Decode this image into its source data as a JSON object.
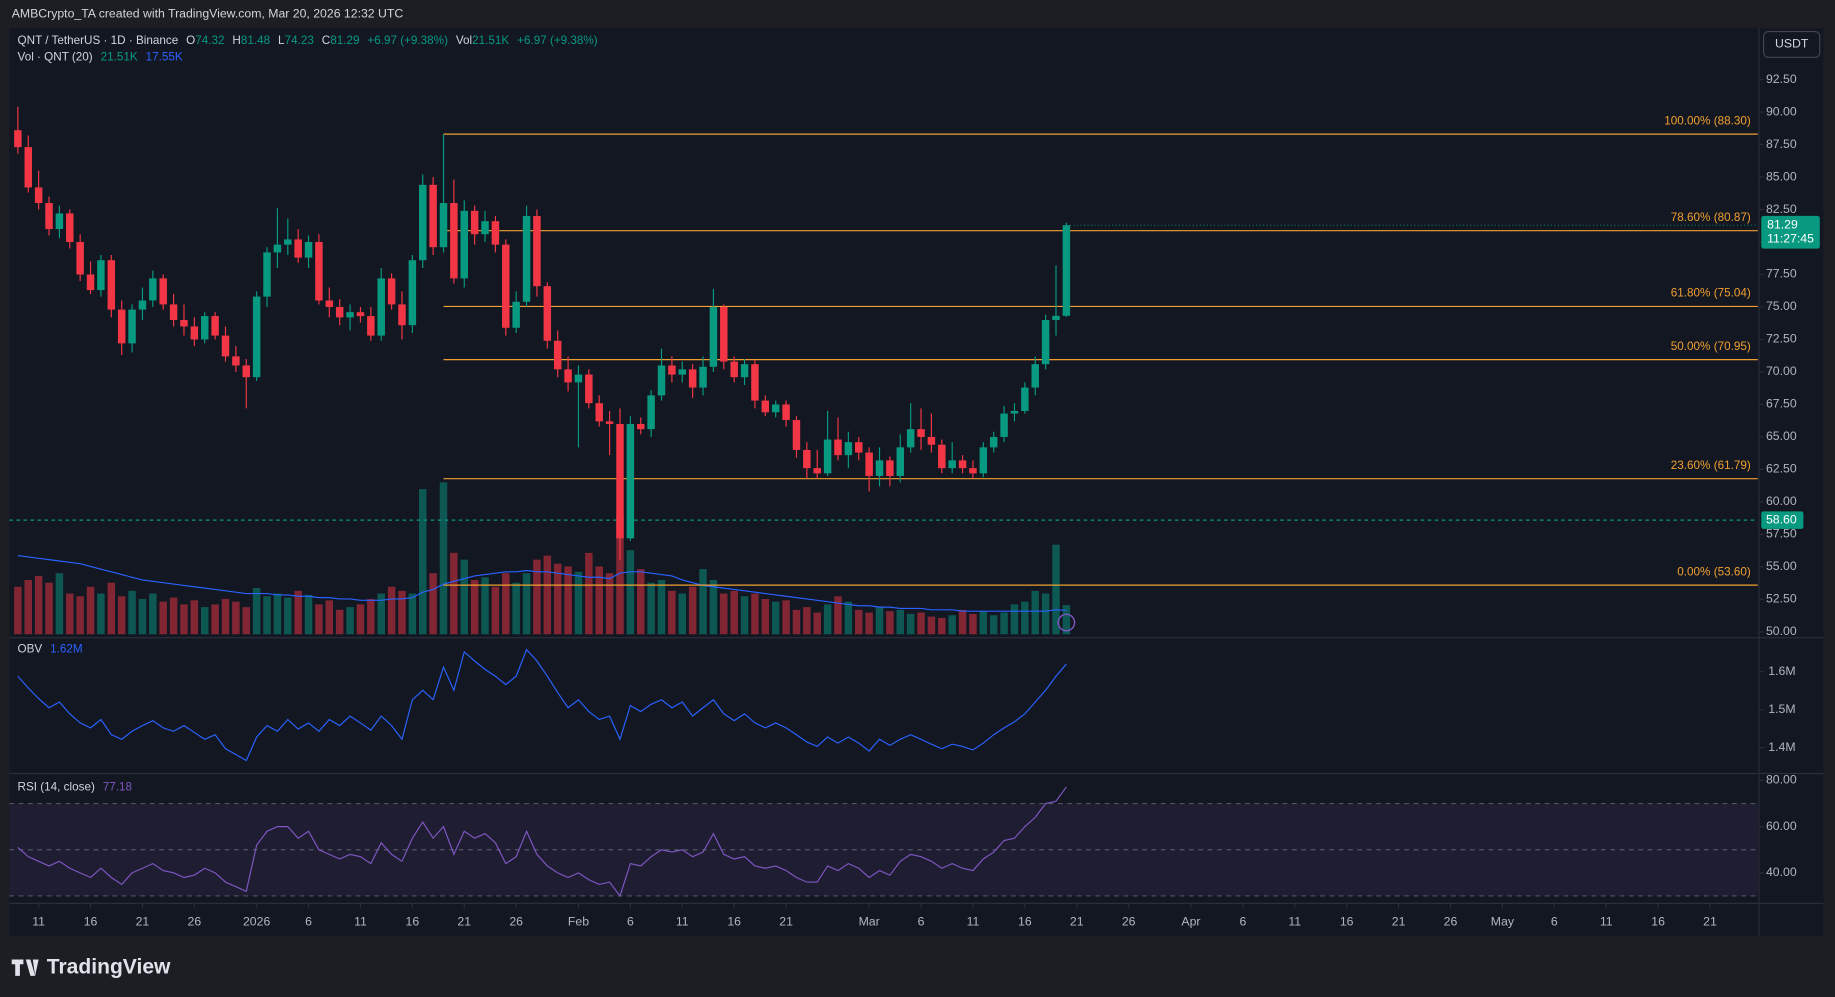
{
  "page": {
    "attribution": "AMBCrypto_TA created with TradingView.com, Mar 20, 2026 12:32 UTC",
    "logo": "TradingView",
    "currency_button": "USDT"
  },
  "chart_data": {
    "type": "candlestick",
    "legend": {
      "symbol": "QNT / TetherUS · 1D · Binance",
      "o": "O",
      "h": "H",
      "l": "L",
      "c": "C",
      "change": "+6.97 (+9.38%)",
      "vol": "Vol",
      "vol_last": "21.51K",
      "vol_ma_title": "Vol · QNT (20)",
      "vol_ma_last": "17.55K"
    },
    "up_color": "#089981",
    "down_color": "#f23645",
    "xlim": [
      -0.82,
      167.6
    ],
    "xticks": [
      {
        "value": 2,
        "label": "11"
      },
      {
        "value": 7,
        "label": "16"
      },
      {
        "value": 12,
        "label": "21"
      },
      {
        "value": 17,
        "label": "26"
      },
      {
        "value": 23,
        "label": "2026"
      },
      {
        "value": 28,
        "label": "6"
      },
      {
        "value": 33,
        "label": "11"
      },
      {
        "value": 38,
        "label": "16"
      },
      {
        "value": 43,
        "label": "21"
      },
      {
        "value": 48,
        "label": "26"
      },
      {
        "value": 54,
        "label": "Feb"
      },
      {
        "value": 59,
        "label": "6"
      },
      {
        "value": 64,
        "label": "11"
      },
      {
        "value": 69,
        "label": "16"
      },
      {
        "value": 74,
        "label": "21"
      },
      {
        "value": 82,
        "label": "Mar"
      },
      {
        "value": 87,
        "label": "6"
      },
      {
        "value": 92,
        "label": "11"
      },
      {
        "value": 97,
        "label": "16"
      },
      {
        "value": 102,
        "label": "21"
      },
      {
        "value": 107,
        "label": "26"
      },
      {
        "value": 113,
        "label": "Apr"
      },
      {
        "value": 118,
        "label": "6"
      },
      {
        "value": 123,
        "label": "11"
      },
      {
        "value": 128,
        "label": "16"
      },
      {
        "value": 133,
        "label": "21"
      },
      {
        "value": 138,
        "label": "26"
      },
      {
        "value": 143,
        "label": "May"
      },
      {
        "value": 148,
        "label": "6"
      },
      {
        "value": 153,
        "label": "11"
      },
      {
        "value": 158,
        "label": "16"
      },
      {
        "value": 163,
        "label": "21"
      }
    ],
    "ylim": [
      49.82,
      96.37
    ],
    "yticks": [
      {
        "value": 50,
        "label": "50.00"
      },
      {
        "value": 52.5,
        "label": "52.50"
      },
      {
        "value": 55,
        "label": "55.00"
      },
      {
        "value": 57.5,
        "label": "57.50"
      },
      {
        "value": 60,
        "label": "60.00"
      },
      {
        "value": 62.5,
        "label": "62.50"
      },
      {
        "value": 65,
        "label": "65.00"
      },
      {
        "value": 67.5,
        "label": "67.50"
      },
      {
        "value": 70,
        "label": "70.00"
      },
      {
        "value": 72.5,
        "label": "72.50"
      },
      {
        "value": 75,
        "label": "75.00"
      },
      {
        "value": 77.5,
        "label": "77.50"
      },
      {
        "value": 80,
        "label": "80.00"
      },
      {
        "value": 82.5,
        "label": "82.50"
      },
      {
        "value": 85,
        "label": "85.00"
      },
      {
        "value": 87.5,
        "label": "87.50"
      },
      {
        "value": 90,
        "label": "90.00"
      },
      {
        "value": 92.5,
        "label": "92.50"
      }
    ],
    "grid": false,
    "candles": [
      [
        88.6,
        90.4,
        86.8,
        87.3
      ],
      [
        87.3,
        88.2,
        83.8,
        84.2
      ],
      [
        84.2,
        85.5,
        82.5,
        83.0
      ],
      [
        83.0,
        83.5,
        80.5,
        81.0
      ],
      [
        81.0,
        82.8,
        80.3,
        82.2
      ],
      [
        82.2,
        82.5,
        79.5,
        80.0
      ],
      [
        80.0,
        80.6,
        77.0,
        77.5
      ],
      [
        77.5,
        78.5,
        76.0,
        76.3
      ],
      [
        76.3,
        79.0,
        75.8,
        78.6
      ],
      [
        78.6,
        79.0,
        74.2,
        74.8
      ],
      [
        74.8,
        75.5,
        71.3,
        72.2
      ],
      [
        72.2,
        75.2,
        71.5,
        74.8
      ],
      [
        74.8,
        76.5,
        74.0,
        75.5
      ],
      [
        75.5,
        77.8,
        75.0,
        77.2
      ],
      [
        77.2,
        77.5,
        74.8,
        75.2
      ],
      [
        75.2,
        76.0,
        73.5,
        74.0
      ],
      [
        74.0,
        75.2,
        72.8,
        73.5
      ],
      [
        73.5,
        74.2,
        72.0,
        72.5
      ],
      [
        72.5,
        74.6,
        72.2,
        74.3
      ],
      [
        74.3,
        74.6,
        72.5,
        72.8
      ],
      [
        72.8,
        73.5,
        70.8,
        71.2
      ],
      [
        71.2,
        72.0,
        70.0,
        70.5
      ],
      [
        70.5,
        71.0,
        67.2,
        69.6
      ],
      [
        69.6,
        76.2,
        69.3,
        75.8
      ],
      [
        75.8,
        79.6,
        75.0,
        79.2
      ],
      [
        79.2,
        82.6,
        78.0,
        79.8
      ],
      [
        79.8,
        81.8,
        79.0,
        80.2
      ],
      [
        80.2,
        81.0,
        78.4,
        78.8
      ],
      [
        78.8,
        80.5,
        78.0,
        80.0
      ],
      [
        80.0,
        80.6,
        75.2,
        75.5
      ],
      [
        75.5,
        76.5,
        74.2,
        75.0
      ],
      [
        75.0,
        75.6,
        73.6,
        74.2
      ],
      [
        74.2,
        75.2,
        73.2,
        74.6
      ],
      [
        74.6,
        75.0,
        73.8,
        74.3
      ],
      [
        74.3,
        75.0,
        72.4,
        72.8
      ],
      [
        72.8,
        78.0,
        72.4,
        77.2
      ],
      [
        77.2,
        77.6,
        74.8,
        75.2
      ],
      [
        75.2,
        76.2,
        72.5,
        73.6
      ],
      [
        73.6,
        79.0,
        73.0,
        78.6
      ],
      [
        78.6,
        85.2,
        78.0,
        84.4
      ],
      [
        84.4,
        85.0,
        79.0,
        79.6
      ],
      [
        79.6,
        88.3,
        79.2,
        83.0
      ],
      [
        83.0,
        84.8,
        76.8,
        77.2
      ],
      [
        77.2,
        83.2,
        76.5,
        82.4
      ],
      [
        82.4,
        82.8,
        79.8,
        80.6
      ],
      [
        80.6,
        82.4,
        80.0,
        81.6
      ],
      [
        81.6,
        82.0,
        79.2,
        79.8
      ],
      [
        79.8,
        80.2,
        72.8,
        73.4
      ],
      [
        73.4,
        76.2,
        73.0,
        75.4
      ],
      [
        75.4,
        82.8,
        75.0,
        82.0
      ],
      [
        82.0,
        82.5,
        75.8,
        76.6
      ],
      [
        76.6,
        76.9,
        71.8,
        72.4
      ],
      [
        72.4,
        73.2,
        69.6,
        70.2
      ],
      [
        70.2,
        71.2,
        68.5,
        69.2
      ],
      [
        69.2,
        70.5,
        64.2,
        69.8
      ],
      [
        69.8,
        70.2,
        67.2,
        67.6
      ],
      [
        67.6,
        68.2,
        65.8,
        66.2
      ],
      [
        66.2,
        67.0,
        63.6,
        66.0
      ],
      [
        66.0,
        67.2,
        55.5,
        57.2
      ],
      [
        57.2,
        66.6,
        57.0,
        66.0
      ],
      [
        66.0,
        66.5,
        65.2,
        65.6
      ],
      [
        65.6,
        68.6,
        65.0,
        68.2
      ],
      [
        68.2,
        71.8,
        67.8,
        70.5
      ],
      [
        70.5,
        71.2,
        69.2,
        69.8
      ],
      [
        69.8,
        70.8,
        69.2,
        70.2
      ],
      [
        70.2,
        70.6,
        68.0,
        68.8
      ],
      [
        68.8,
        71.2,
        68.2,
        70.4
      ],
      [
        70.4,
        76.4,
        70.0,
        75.0
      ],
      [
        75.0,
        75.2,
        70.2,
        70.8
      ],
      [
        70.8,
        71.2,
        69.2,
        69.6
      ],
      [
        69.6,
        71.0,
        69.0,
        70.6
      ],
      [
        70.6,
        70.9,
        67.2,
        67.8
      ],
      [
        67.8,
        68.2,
        66.6,
        66.9
      ],
      [
        66.9,
        67.8,
        66.5,
        67.5
      ],
      [
        67.5,
        67.8,
        65.8,
        66.3
      ],
      [
        66.3,
        66.6,
        63.4,
        64.0
      ],
      [
        64.0,
        64.6,
        61.8,
        62.6
      ],
      [
        62.6,
        64.0,
        61.8,
        62.2
      ],
      [
        62.2,
        67.0,
        62.0,
        64.8
      ],
      [
        64.8,
        66.5,
        63.2,
        63.6
      ],
      [
        63.6,
        65.4,
        62.6,
        64.6
      ],
      [
        64.6,
        65.0,
        63.2,
        63.8
      ],
      [
        63.8,
        64.2,
        60.8,
        62.0
      ],
      [
        62.0,
        64.2,
        61.2,
        63.2
      ],
      [
        63.2,
        63.5,
        61.2,
        62.0
      ],
      [
        62.0,
        65.2,
        61.5,
        64.2
      ],
      [
        64.2,
        67.6,
        63.8,
        65.6
      ],
      [
        65.6,
        67.2,
        64.0,
        65.0
      ],
      [
        65.0,
        66.8,
        63.8,
        64.4
      ],
      [
        64.4,
        64.8,
        62.2,
        62.6
      ],
      [
        62.6,
        64.6,
        62.2,
        63.2
      ],
      [
        63.2,
        63.6,
        62.2,
        62.6
      ],
      [
        62.6,
        63.2,
        61.8,
        62.2
      ],
      [
        62.2,
        64.6,
        61.9,
        64.2
      ],
      [
        64.2,
        65.4,
        63.8,
        65.0
      ],
      [
        65.0,
        67.4,
        64.6,
        66.8
      ],
      [
        66.8,
        67.6,
        66.2,
        67.0
      ],
      [
        67.0,
        69.2,
        66.8,
        68.8
      ],
      [
        68.8,
        71.2,
        68.2,
        70.6
      ],
      [
        70.6,
        74.4,
        70.2,
        74.0
      ],
      [
        74.0,
        78.2,
        72.8,
        74.32
      ],
      [
        74.32,
        81.48,
        74.23,
        81.29
      ]
    ],
    "last_price_timer": "11:27:45",
    "alert_line": {
      "value": 58.6,
      "label": "58.60",
      "color": "#089981"
    },
    "fib_color": "#f0a030",
    "fib_levels": [
      {
        "label": "100.00% (88.30)",
        "value": 88.3
      },
      {
        "label": "78.60% (80.87)",
        "value": 80.87
      },
      {
        "label": "61.80% (75.04)",
        "value": 75.04
      },
      {
        "label": "50.00% (70.95)",
        "value": 70.95
      },
      {
        "label": "23.60% (61.79)",
        "value": 61.79
      },
      {
        "label": "0.00% (53.60)",
        "value": 53.6
      }
    ],
    "volume": {
      "ylim": [
        0,
        446
      ],
      "values": [
        35,
        40,
        43,
        38,
        45,
        30,
        28,
        35,
        30,
        38,
        28,
        32,
        26,
        30,
        24,
        27,
        22,
        25,
        20,
        22,
        26,
        24,
        20,
        34,
        28,
        30,
        27,
        32,
        29,
        22,
        25,
        18,
        20,
        22,
        26,
        30,
        35,
        32,
        30,
        107,
        45,
        112,
        60,
        55,
        40,
        42,
        35,
        45,
        38,
        45,
        55,
        58,
        52,
        50,
        46,
        60,
        50,
        45,
        89,
        62,
        48,
        38,
        40,
        32,
        30,
        35,
        48,
        40,
        30,
        32,
        28,
        30,
        26,
        24,
        25,
        18,
        20,
        16,
        22,
        28,
        24,
        18,
        16,
        20,
        17,
        18,
        15,
        16,
        13,
        12,
        14,
        18,
        15,
        17,
        14,
        16,
        22,
        24,
        32,
        30,
        66,
        21.51
      ]
    },
    "volume_ma": {
      "color": "#2962ff",
      "values": [
        58,
        57,
        56,
        55,
        54,
        53,
        52,
        50,
        48,
        46,
        44,
        42,
        40,
        39,
        38,
        37,
        36,
        35,
        34,
        33,
        32,
        31,
        30,
        30,
        30,
        29,
        29,
        28,
        28,
        27,
        27,
        26,
        26,
        25,
        25,
        25,
        26,
        26,
        27,
        31,
        33,
        37,
        39,
        41,
        43,
        44,
        45,
        46,
        46,
        47,
        46,
        46,
        45,
        44,
        43,
        42,
        42,
        41,
        45,
        46,
        46,
        45,
        44,
        43,
        40,
        38,
        36,
        35,
        34,
        33,
        32,
        31,
        30,
        29,
        28,
        27,
        26,
        25,
        24,
        23,
        22,
        21,
        21,
        20,
        20,
        19,
        19,
        19,
        18,
        18,
        18,
        17,
        17,
        17,
        17,
        17,
        17,
        17,
        17,
        17,
        18,
        17.55
      ]
    },
    "obv": {
      "name": "OBV",
      "value_label": "1.62M",
      "color": "#2962ff",
      "ylim": [
        1.335,
        1.68
      ],
      "yticks": [
        {
          "value": 1.4,
          "label": "1.4M"
        },
        {
          "value": 1.5,
          "label": "1.5M"
        },
        {
          "value": 1.6,
          "label": "1.6M"
        }
      ],
      "values": [
        1.588,
        1.557,
        1.529,
        1.505,
        1.52,
        1.489,
        1.465,
        1.452,
        1.474,
        1.434,
        1.422,
        1.443,
        1.458,
        1.471,
        1.452,
        1.443,
        1.458,
        1.44,
        1.422,
        1.434,
        1.397,
        1.382,
        1.366,
        1.428,
        1.458,
        1.443,
        1.474,
        1.449,
        1.465,
        1.443,
        1.474,
        1.458,
        1.483,
        1.465,
        1.446,
        1.483,
        1.458,
        1.422,
        1.526,
        1.551,
        1.526,
        1.612,
        1.551,
        1.652,
        1.628,
        1.606,
        1.588,
        1.566,
        1.588,
        1.658,
        1.628,
        1.588,
        1.545,
        1.505,
        1.526,
        1.495,
        1.474,
        1.483,
        1.422,
        1.511,
        1.495,
        1.514,
        1.526,
        1.505,
        1.52,
        1.483,
        1.505,
        1.526,
        1.489,
        1.471,
        1.489,
        1.465,
        1.452,
        1.465,
        1.452,
        1.434,
        1.415,
        1.403,
        1.428,
        1.412,
        1.428,
        1.412,
        1.391,
        1.422,
        1.406,
        1.422,
        1.434,
        1.422,
        1.409,
        1.397,
        1.409,
        1.403,
        1.394,
        1.412,
        1.434,
        1.452,
        1.468,
        1.489,
        1.52,
        1.551,
        1.588,
        1.62
      ]
    },
    "rsi": {
      "name": "RSI (14, close)",
      "color": "#7e57c2",
      "ylim": [
        27.8,
        82.5
      ],
      "bands": [
        30,
        50,
        70
      ],
      "yticks": [
        {
          "value": 40,
          "label": "40.00"
        },
        {
          "value": 60,
          "label": "60.00"
        },
        {
          "value": 80,
          "label": "80.00"
        }
      ],
      "values": [
        51,
        47,
        45,
        43,
        45,
        42,
        40,
        38,
        42,
        38,
        35,
        40,
        42,
        44,
        41,
        40,
        38,
        39,
        42,
        40,
        36,
        34,
        32,
        52,
        58,
        60,
        60,
        55,
        58,
        50,
        48,
        46,
        48,
        47,
        44,
        53,
        48,
        45,
        55,
        62,
        55,
        60,
        48,
        58,
        55,
        57,
        53,
        44,
        47,
        58,
        48,
        43,
        40,
        38,
        40,
        37,
        35,
        36,
        30,
        44,
        43,
        47,
        50,
        49,
        50,
        47,
        49,
        57,
        48,
        46,
        47,
        43,
        42,
        43,
        41,
        38,
        36,
        36,
        43,
        41,
        44,
        42,
        38,
        41,
        39,
        45,
        48,
        47,
        45,
        42,
        44,
        42,
        41,
        46,
        49,
        54,
        55,
        60,
        64,
        70,
        71,
        77.18
      ]
    }
  }
}
